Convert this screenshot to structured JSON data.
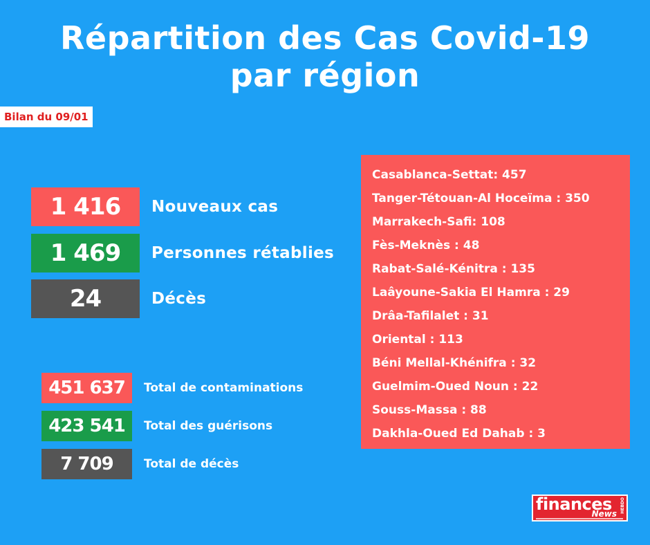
{
  "title": {
    "line1": "Répartition des Cas Covid-19",
    "line2": "par région"
  },
  "badge": "Bilan du 09/01",
  "daily": {
    "new_cases": {
      "value": "1 416",
      "label": "Nouveaux cas",
      "color": "#fa5858"
    },
    "recovered": {
      "value": "1 469",
      "label": "Personnes rétablies",
      "color": "#1a9c4a"
    },
    "deaths": {
      "value": "24",
      "label": "Décès",
      "color": "#555555"
    }
  },
  "totals": {
    "contaminations": {
      "value": "451 637",
      "label": "Total de contaminations",
      "color": "#fa5858"
    },
    "recoveries": {
      "value": "423 541",
      "label": "Total des guérisons",
      "color": "#1a9c4a"
    },
    "deaths": {
      "value": "7 709",
      "label": "Total de décès",
      "color": "#555555"
    }
  },
  "regions": [
    "Casablanca-Settat: 457",
    "Tanger-Tétouan-Al Hoceïma : 350",
    "Marrakech-Safi: 108",
    "Fès-Meknès : 48",
    "Rabat-Salé-Kénitra : 135",
    "Laâyoune-Sakia El Hamra : 29",
    "Drâa-Tafilalet : 31",
    "Oriental : 113",
    "Béni Mellal-Khénifra : 32",
    "Guelmim-Oued Noun : 22",
    "Souss-Massa : 88",
    "Dakhla-Oued Ed Dahab : 3"
  ],
  "logo": {
    "main": "finances",
    "sub": "News",
    "side": "HEBDO"
  },
  "colors": {
    "background": "#1da0f5",
    "accent_red": "#fa5858",
    "accent_green": "#1a9c4a",
    "accent_grey": "#555555"
  }
}
